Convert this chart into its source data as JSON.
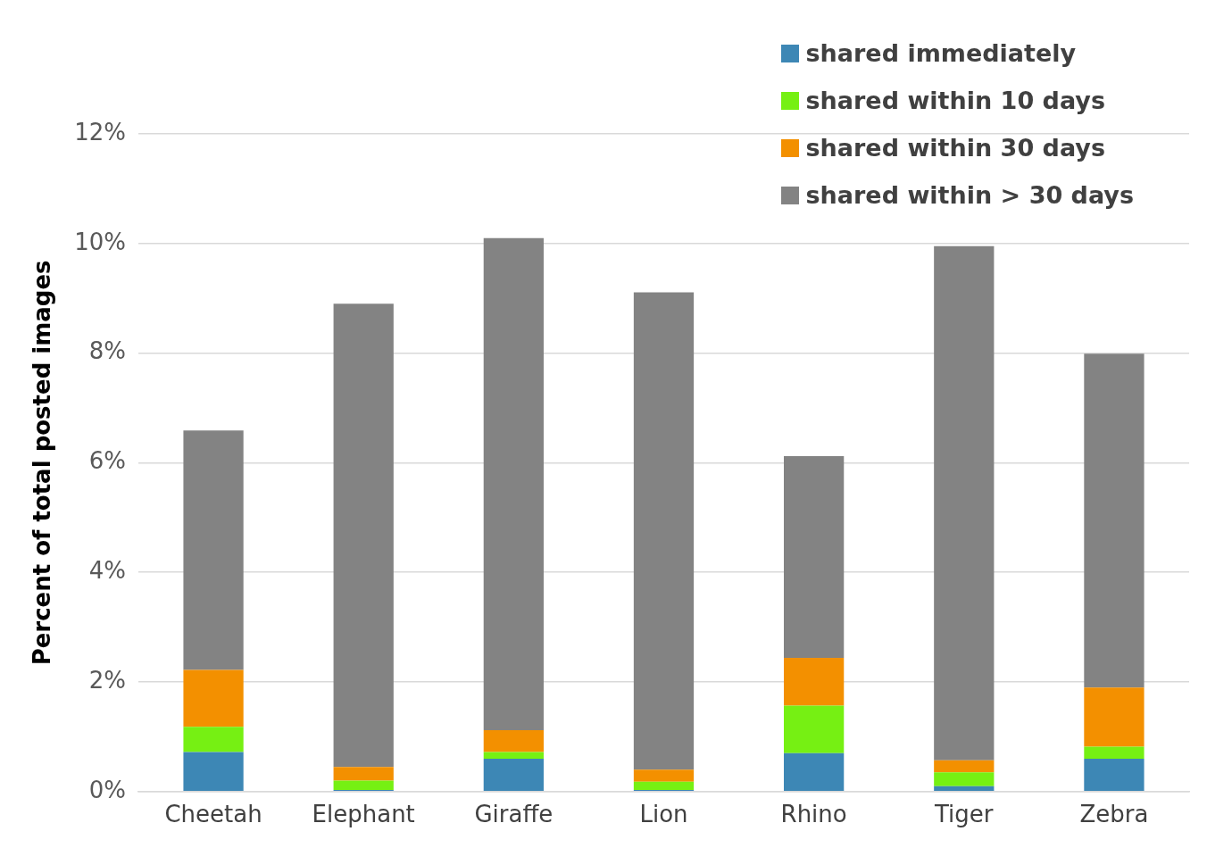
{
  "chart_data": {
    "type": "bar",
    "stacked": true,
    "ylabel": "Percent of total posted images",
    "categories": [
      "Cheetah",
      "Elephant",
      "Giraffe",
      "Lion",
      "Rhino",
      "Tiger",
      "Zebra"
    ],
    "series": [
      {
        "name": "shared immediately",
        "color": "#3d87b5",
        "values": [
          0.72,
          0.03,
          0.6,
          0.03,
          0.7,
          0.1,
          0.6
        ]
      },
      {
        "name": "shared within 10 days",
        "color": "#76f013",
        "values": [
          0.46,
          0.17,
          0.12,
          0.15,
          0.87,
          0.25,
          0.22
        ]
      },
      {
        "name": "shared within 30 days",
        "color": "#f39000",
        "values": [
          1.04,
          0.25,
          0.4,
          0.22,
          0.87,
          0.22,
          1.08
        ]
      },
      {
        "name": "shared within > 30 days",
        "color": "#838383",
        "values": [
          4.37,
          8.45,
          8.98,
          8.71,
          3.68,
          9.38,
          6.09
        ]
      }
    ],
    "ylim": [
      0,
      12
    ],
    "yticks": [
      {
        "value": 0,
        "label": "0%"
      },
      {
        "value": 2,
        "label": "2%"
      },
      {
        "value": 4,
        "label": "4%"
      },
      {
        "value": 6,
        "label": "6%"
      },
      {
        "value": 8,
        "label": "8%"
      },
      {
        "value": 10,
        "label": "10%"
      },
      {
        "value": 12,
        "label": "12%"
      }
    ],
    "grid": "y",
    "legend": "top right"
  }
}
